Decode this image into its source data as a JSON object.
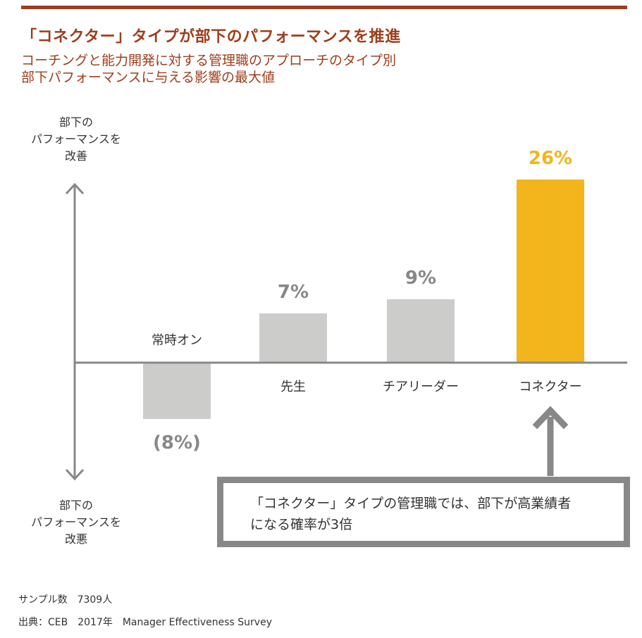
{
  "title": "「コネクター」タイプが部下のパフォーマンスを推進",
  "subtitle_lines": [
    "コーチングと能力開発に対する管理職のアプローチのタイプ別",
    "部下パフォーマンスに与える影響の最大値"
  ],
  "axis_notes": {
    "up": [
      "部下の",
      "パフォーマンスを",
      "改善"
    ],
    "down": [
      "部下の",
      "パフォーマンスを",
      "改悪"
    ]
  },
  "chart_data": {
    "type": "bar",
    "categories": [
      "常時オン",
      "先生",
      "チアリーダー",
      "コネクター"
    ],
    "values": [
      -8,
      7,
      9,
      26
    ],
    "data_labels": [
      "(8%)",
      "7%",
      "9%",
      "26%"
    ],
    "unit": "%",
    "ylim": [
      -10,
      26
    ],
    "grid": false,
    "colors": {
      "default_bar": "#cccccb",
      "highlight_bar": "#f2b51c",
      "value_label": "#888888",
      "highlight_label": "#f2b51c",
      "axis": "#888888"
    }
  },
  "callout": {
    "lines": [
      "「コネクター」タイプの管理職では、部下が高業績者",
      "になる確率が3倍"
    ]
  },
  "footer": {
    "sample": "サンプル数　7309人",
    "source": "出典：CEB　2017年　Manager Effectiveness Survey"
  }
}
